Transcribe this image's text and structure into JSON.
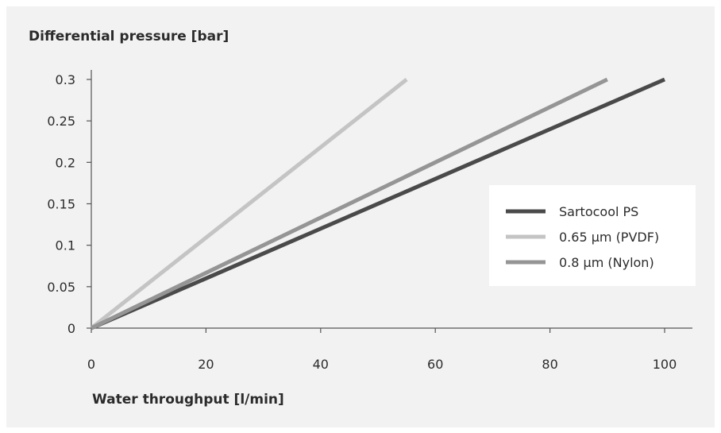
{
  "chart_data": {
    "type": "line",
    "ylabel": "Differential pressure [bar]",
    "xlabel": "Water throughput [l/min]",
    "xlim": [
      0,
      100
    ],
    "ylim": [
      0,
      0.3
    ],
    "x_ticks": [
      "0",
      "20",
      "40",
      "60",
      "80",
      "100"
    ],
    "y_ticks": [
      "0",
      "0.05",
      "0.1",
      "0.15",
      "0.2",
      "0.25",
      "0.3"
    ],
    "grid": false,
    "legend_position": "right",
    "series": [
      {
        "name": "Sartocool PS",
        "color": "#4a4a4a",
        "x": [
          0,
          100
        ],
        "y": [
          0,
          0.3
        ]
      },
      {
        "name": "0.65 µm (PVDF)",
        "color": "#c4c4c4",
        "x": [
          0,
          55
        ],
        "y": [
          0,
          0.3
        ]
      },
      {
        "name": "0.8 µm (Nylon)",
        "color": "#959595",
        "x": [
          0,
          90
        ],
        "y": [
          0,
          0.3
        ]
      }
    ]
  }
}
